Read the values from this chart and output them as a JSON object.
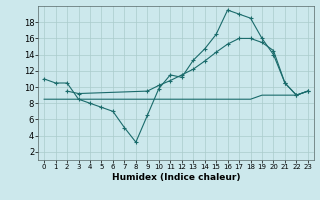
{
  "xlabel": "Humidex (Indice chaleur)",
  "background_color": "#cce8ec",
  "grid_color": "#aacccc",
  "line_color": "#1a6b6b",
  "xlim": [
    -0.5,
    23.5
  ],
  "ylim": [
    1,
    20
  ],
  "xticks": [
    0,
    1,
    2,
    3,
    4,
    5,
    6,
    7,
    8,
    9,
    10,
    11,
    12,
    13,
    14,
    15,
    16,
    17,
    18,
    19,
    20,
    21,
    22,
    23
  ],
  "yticks": [
    2,
    4,
    6,
    8,
    10,
    12,
    14,
    16,
    18
  ],
  "line1_x": [
    0,
    1,
    2,
    3,
    4,
    5,
    6,
    7,
    8,
    9,
    10,
    11,
    12,
    13,
    14,
    15,
    16,
    17,
    18,
    19,
    20,
    21,
    22,
    23
  ],
  "line1_y": [
    11.0,
    10.5,
    10.5,
    8.5,
    8.0,
    7.5,
    7.0,
    5.0,
    3.2,
    6.5,
    9.8,
    11.5,
    11.2,
    13.3,
    14.7,
    16.5,
    19.5,
    19.0,
    18.5,
    16.0,
    14.0,
    10.5,
    9.0,
    9.5
  ],
  "line2_x": [
    0,
    1,
    2,
    3,
    4,
    5,
    6,
    7,
    8,
    9,
    10,
    11,
    12,
    13,
    14,
    15,
    16,
    17,
    18,
    19,
    20,
    21,
    22,
    23
  ],
  "line2_y": [
    8.5,
    8.5,
    8.5,
    8.5,
    8.5,
    8.5,
    8.5,
    8.5,
    8.5,
    8.5,
    8.5,
    8.5,
    8.5,
    8.5,
    8.5,
    8.5,
    8.5,
    8.5,
    8.5,
    9.0,
    9.0,
    9.0,
    9.0,
    9.5
  ],
  "line3_x": [
    2,
    3,
    9,
    10,
    11,
    12,
    13,
    14,
    15,
    16,
    17,
    18,
    19,
    20,
    21,
    22,
    23
  ],
  "line3_y": [
    9.5,
    9.2,
    9.5,
    10.2,
    10.8,
    11.5,
    12.2,
    13.2,
    14.3,
    15.3,
    16.0,
    16.0,
    15.5,
    14.5,
    10.5,
    9.0,
    9.5
  ]
}
